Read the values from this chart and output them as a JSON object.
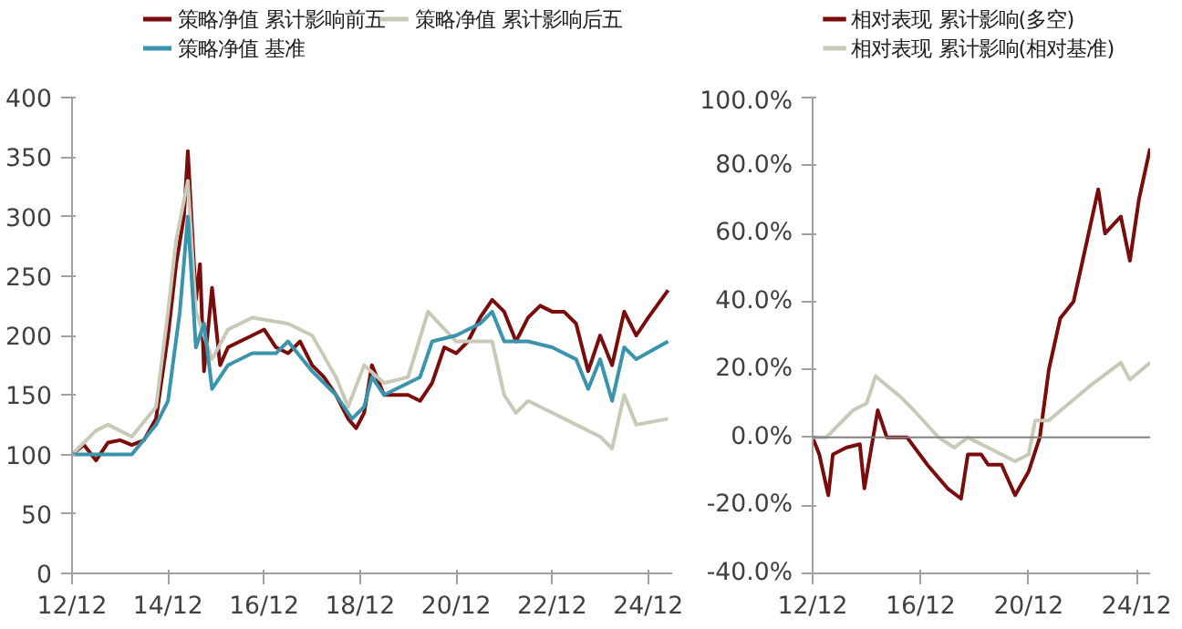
{
  "chart_data": [
    {
      "type": "line",
      "legend": "top",
      "grid": false,
      "line_style": "solid",
      "xlim": [
        "2012-12",
        "2025-06"
      ],
      "ylim": [
        0,
        400
      ],
      "xticks": [
        {
          "value": "2012-12",
          "label": "12/12"
        },
        {
          "value": "2014-12",
          "label": "14/12"
        },
        {
          "value": "2016-12",
          "label": "16/12"
        },
        {
          "value": "2018-12",
          "label": "18/12"
        },
        {
          "value": "2020-12",
          "label": "20/12"
        },
        {
          "value": "2022-12",
          "label": "22/12"
        },
        {
          "value": "2024-12",
          "label": "24/12"
        }
      ],
      "yticks": [
        0,
        50,
        100,
        150,
        200,
        250,
        300,
        350,
        400
      ],
      "series": [
        {
          "name": "策略净值 累计影响前五",
          "color": "#7b0c0c",
          "x": [
            "2012-12",
            "2013-03",
            "2013-06",
            "2013-09",
            "2013-12",
            "2014-03",
            "2014-06",
            "2014-09",
            "2014-12",
            "2015-02",
            "2015-04",
            "2015-05",
            "2015-07",
            "2015-08",
            "2015-09",
            "2015-11",
            "2016-01",
            "2016-03",
            "2016-06",
            "2016-09",
            "2016-12",
            "2017-03",
            "2017-06",
            "2017-09",
            "2017-12",
            "2018-03",
            "2018-06",
            "2018-09",
            "2018-11",
            "2019-01",
            "2019-03",
            "2019-06",
            "2019-09",
            "2019-12",
            "2020-03",
            "2020-06",
            "2020-09",
            "2020-12",
            "2021-03",
            "2021-06",
            "2021-09",
            "2021-12",
            "2022-03",
            "2022-06",
            "2022-09",
            "2022-12",
            "2023-03",
            "2023-06",
            "2023-09",
            "2023-12",
            "2024-03",
            "2024-06",
            "2024-09",
            "2024-12",
            "2025-05"
          ],
          "values": [
            100,
            108,
            95,
            110,
            112,
            108,
            112,
            130,
            200,
            260,
            300,
            355,
            230,
            260,
            170,
            240,
            175,
            190,
            195,
            200,
            205,
            190,
            185,
            195,
            175,
            165,
            150,
            130,
            122,
            135,
            175,
            150,
            150,
            150,
            145,
            160,
            190,
            185,
            195,
            215,
            230,
            220,
            195,
            215,
            225,
            220,
            220,
            210,
            170,
            200,
            175,
            220,
            200,
            215,
            238
          ]
        },
        {
          "name": "策略净值 累计影响后五",
          "color": "#c9c9b8",
          "x": [
            "2012-12",
            "2013-06",
            "2013-09",
            "2014-03",
            "2014-09",
            "2014-12",
            "2015-02",
            "2015-05",
            "2015-07",
            "2015-09",
            "2015-11",
            "2016-03",
            "2016-09",
            "2017-06",
            "2017-12",
            "2018-06",
            "2018-09",
            "2019-01",
            "2019-06",
            "2019-12",
            "2020-05",
            "2020-12",
            "2021-09",
            "2021-12",
            "2022-03",
            "2022-06",
            "2022-12",
            "2023-06",
            "2023-12",
            "2024-03",
            "2024-06",
            "2024-09",
            "2025-05"
          ],
          "values": [
            100,
            120,
            125,
            115,
            140,
            220,
            280,
            330,
            220,
            200,
            180,
            205,
            215,
            210,
            200,
            165,
            140,
            175,
            160,
            165,
            220,
            195,
            195,
            150,
            135,
            145,
            135,
            125,
            115,
            105,
            150,
            125,
            130
          ]
        },
        {
          "name": "策略净值 基准",
          "color": "#3a94ad",
          "x": [
            "2012-12",
            "2013-06",
            "2014-03",
            "2014-09",
            "2014-12",
            "2015-03",
            "2015-05",
            "2015-07",
            "2015-09",
            "2015-11",
            "2016-03",
            "2016-09",
            "2017-03",
            "2017-06",
            "2017-12",
            "2018-06",
            "2018-10",
            "2019-01",
            "2019-03",
            "2019-06",
            "2019-12",
            "2020-03",
            "2020-06",
            "2020-12",
            "2021-06",
            "2021-09",
            "2021-12",
            "2022-06",
            "2022-12",
            "2023-06",
            "2023-09",
            "2023-12",
            "2024-03",
            "2024-06",
            "2024-09",
            "2025-05"
          ],
          "values": [
            100,
            100,
            100,
            125,
            145,
            220,
            300,
            190,
            210,
            155,
            175,
            185,
            185,
            195,
            170,
            150,
            130,
            140,
            165,
            150,
            160,
            165,
            195,
            200,
            210,
            220,
            195,
            195,
            190,
            180,
            155,
            180,
            145,
            190,
            180,
            195
          ]
        }
      ]
    },
    {
      "type": "line",
      "legend": "top",
      "grid": false,
      "line_style": "solid",
      "xlim": [
        "2012-12",
        "2025-06"
      ],
      "ylim": [
        -40,
        100
      ],
      "xticks": [
        {
          "value": "2012-12",
          "label": "12/12"
        },
        {
          "value": "2016-12",
          "label": "16/12"
        },
        {
          "value": "2020-12",
          "label": "20/12"
        },
        {
          "value": "2024-12",
          "label": "24/12"
        }
      ],
      "yticks": [
        {
          "value": -40,
          "label": "-40.0%"
        },
        {
          "value": -20,
          "label": "-20.0%"
        },
        {
          "value": 0,
          "label": "0.0%"
        },
        {
          "value": 20,
          "label": "20.0%"
        },
        {
          "value": 40,
          "label": "40.0%"
        },
        {
          "value": 60,
          "label": "60.0%"
        },
        {
          "value": 80,
          "label": "80.0%"
        },
        {
          "value": 100,
          "label": "100.0%"
        }
      ],
      "ref_lines": [
        {
          "axis": "y",
          "value": 0,
          "color": "#808080"
        }
      ],
      "series": [
        {
          "name": "相对表现 累计影响(多空)",
          "color": "#7b0c0c",
          "x": [
            "2012-12",
            "2013-03",
            "2013-07",
            "2013-09",
            "2014-03",
            "2014-09",
            "2014-11",
            "2015-05",
            "2015-09",
            "2016-06",
            "2017-03",
            "2017-12",
            "2018-06",
            "2018-09",
            "2019-03",
            "2019-06",
            "2019-12",
            "2020-06",
            "2020-12",
            "2021-05",
            "2021-09",
            "2022-02",
            "2022-08",
            "2023-01",
            "2023-07",
            "2023-10",
            "2024-05",
            "2024-09",
            "2025-01",
            "2025-06"
          ],
          "values": [
            0,
            -5,
            -17,
            -5,
            -3,
            -2,
            -15,
            8,
            0,
            0,
            -8,
            -15,
            -18,
            -5,
            -5,
            -8,
            -8,
            -17,
            -10,
            0,
            20,
            35,
            40,
            55,
            73,
            60,
            65,
            52,
            70,
            85
          ]
        },
        {
          "name": "相对表现 累计影响(相对基准)",
          "color": "#c9c9b8",
          "x": [
            "2012-12",
            "2013-06",
            "2014-06",
            "2014-12",
            "2015-04",
            "2016-03",
            "2016-09",
            "2017-08",
            "2018-03",
            "2018-09",
            "2019-06",
            "2020-06",
            "2020-12",
            "2021-03",
            "2021-09",
            "2022-06",
            "2023-03",
            "2024-05",
            "2024-09",
            "2025-06"
          ],
          "values": [
            0,
            0,
            8,
            10,
            18,
            12,
            8,
            0,
            -3,
            0,
            -3,
            -7,
            -5,
            5,
            5,
            10,
            15,
            22,
            17,
            22
          ]
        }
      ]
    }
  ]
}
